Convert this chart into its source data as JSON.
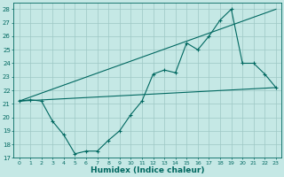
{
  "xlabel": "Humidex (Indice chaleur)",
  "background_color": "#c5e8e5",
  "grid_color": "#9ec8c5",
  "line_color": "#006860",
  "xlim": [
    -0.5,
    23.5
  ],
  "ylim": [
    17.0,
    28.5
  ],
  "xticks": [
    0,
    1,
    2,
    3,
    4,
    5,
    6,
    7,
    8,
    9,
    10,
    11,
    12,
    13,
    14,
    15,
    16,
    17,
    18,
    19,
    20,
    21,
    22,
    23
  ],
  "yticks": [
    17,
    18,
    19,
    20,
    21,
    22,
    23,
    24,
    25,
    26,
    27,
    28
  ],
  "line1_x": [
    0,
    1,
    2,
    3,
    4,
    5,
    6,
    7,
    8,
    9,
    10,
    11,
    12,
    13,
    14,
    15,
    16,
    17,
    18,
    19,
    20,
    21,
    22,
    23
  ],
  "line1_y": [
    21.2,
    21.3,
    21.2,
    19.7,
    18.7,
    17.3,
    17.5,
    17.5,
    18.3,
    19.0,
    20.2,
    21.2,
    23.2,
    23.5,
    23.3,
    25.5,
    25.0,
    26.0,
    27.2,
    28.0,
    24.0,
    24.0,
    23.2,
    22.2
  ],
  "line2_x": [
    0,
    23
  ],
  "line2_y": [
    21.2,
    28.0
  ],
  "line3_x": [
    0,
    23
  ],
  "line3_y": [
    21.2,
    22.2
  ]
}
